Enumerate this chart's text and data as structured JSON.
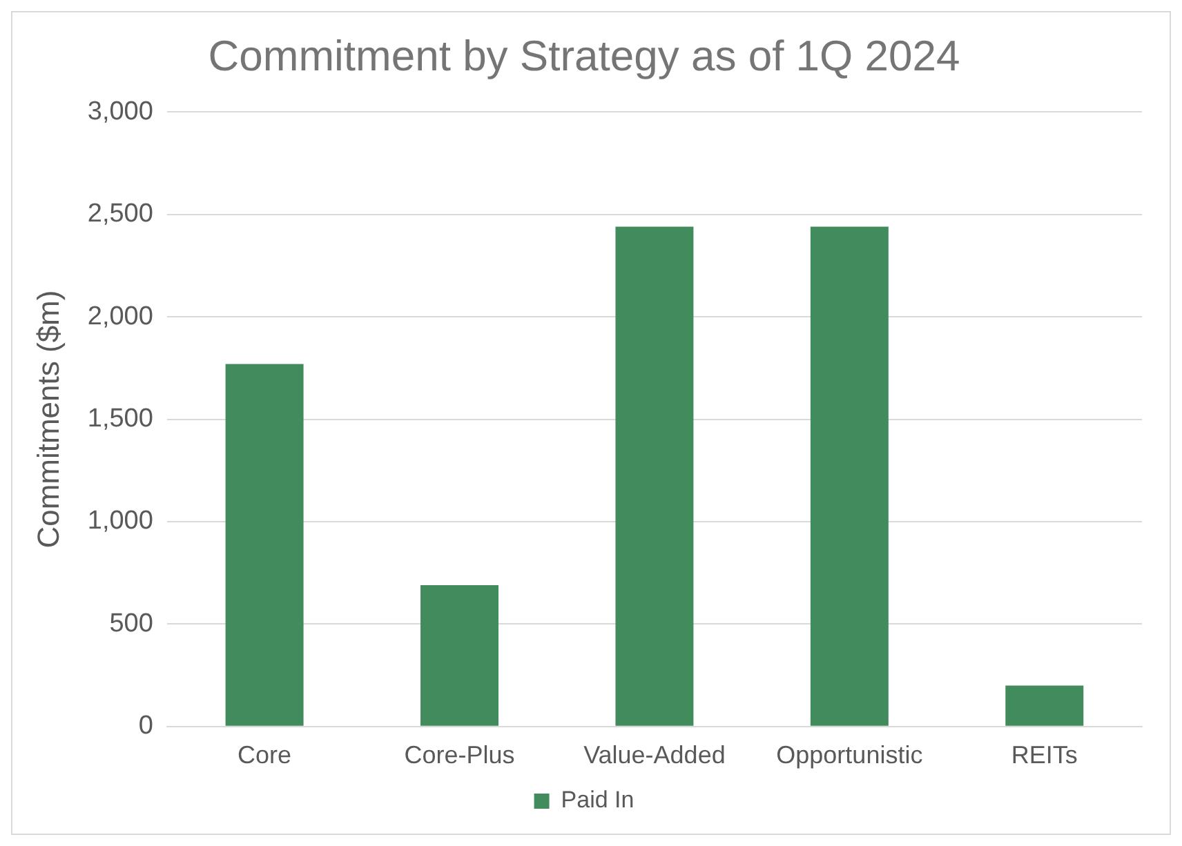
{
  "chart_data": {
    "type": "bar",
    "title": "Commitment by Strategy as of 1Q 2024",
    "ylabel": "Commitments ($m)",
    "categories": [
      "Core",
      "Core-Plus",
      "Value-Added",
      "Opportunistic",
      "REITs"
    ],
    "series": [
      {
        "name": "Paid In",
        "color": "#418b5c",
        "values": [
          1770,
          690,
          2440,
          2440,
          200
        ]
      }
    ],
    "ylim": [
      0,
      3000
    ],
    "yticks": [
      0,
      500,
      {
        "value": 1000,
        "label": "1,000"
      },
      {
        "value": 1500,
        "label": "1,500"
      },
      {
        "value": 2000,
        "label": "2,000"
      },
      {
        "value": 2500,
        "label": "2,500"
      },
      {
        "value": 3000,
        "label": "3,000"
      }
    ],
    "grid": "y",
    "legend": "bottom"
  }
}
